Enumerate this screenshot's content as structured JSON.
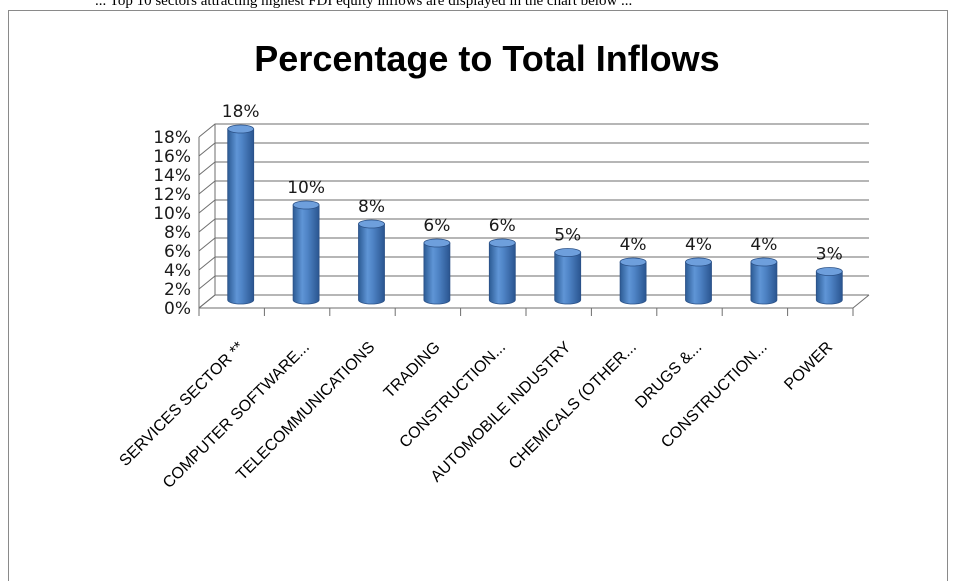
{
  "page": {
    "top_fragment": "... Top 10 sectors attracting highest FDI equity inflows are displayed in the chart below ..."
  },
  "chart_data": {
    "type": "bar",
    "title": "Percentage to Total Inflows",
    "xlabel": "",
    "ylabel": "",
    "ylim": [
      0,
      18
    ],
    "yticks": [
      "0%",
      "2%",
      "4%",
      "6%",
      "8%",
      "10%",
      "12%",
      "14%",
      "16%",
      "18%"
    ],
    "ytick_values": [
      0,
      2,
      4,
      6,
      8,
      10,
      12,
      14,
      16,
      18
    ],
    "grid": true,
    "three_d": true,
    "bar_shape": "cylinder",
    "bar_color": "#4a7ebb",
    "categories": [
      "SERVICES SECTOR **",
      "COMPUTER SOFTWARE...",
      "TELECOMMUNICATIONS",
      "TRADING",
      "CONSTRUCTION...",
      "AUTOMOBILE INDUSTRY",
      "CHEMICALS (OTHER...",
      "DRUGS &...",
      "CONSTRUCTION...",
      "POWER"
    ],
    "values": [
      18,
      10,
      8,
      6,
      6,
      5,
      4,
      4,
      4,
      3
    ],
    "data_labels": [
      "18%",
      "10%",
      "8%",
      "6%",
      "6%",
      "5%",
      "4%",
      "4%",
      "4%",
      "3%"
    ]
  }
}
